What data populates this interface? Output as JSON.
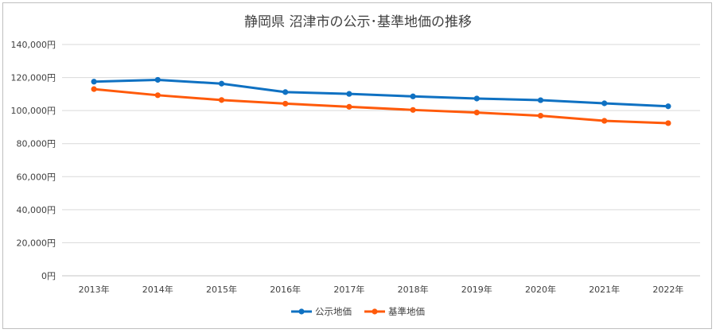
{
  "chart_data": {
    "type": "line",
    "title": "静岡県 沼津市の公示･基準地価の推移",
    "xlabel": "",
    "ylabel": "",
    "categories": [
      "2013年",
      "2014年",
      "2015年",
      "2016年",
      "2017年",
      "2018年",
      "2019年",
      "2020年",
      "2021年",
      "2022年"
    ],
    "ylim": [
      0,
      140000
    ],
    "yticks": [
      "0円",
      "20,000円",
      "40,000円",
      "60,000円",
      "80,000円",
      "100,000円",
      "120,000円",
      "140,000円"
    ],
    "ytick_values": [
      0,
      20000,
      40000,
      60000,
      80000,
      100000,
      120000,
      140000
    ],
    "grid": true,
    "legend_position": "bottom",
    "series": [
      {
        "name": "公示地価",
        "color": "#0f71c2",
        "values": [
          117500,
          118600,
          116300,
          111200,
          110100,
          108600,
          107300,
          106300,
          104400,
          102600
        ]
      },
      {
        "name": "基準地価",
        "color": "#ff5a0a",
        "values": [
          113000,
          109300,
          106400,
          104200,
          102300,
          100400,
          98800,
          96900,
          93800,
          92400
        ]
      }
    ]
  }
}
